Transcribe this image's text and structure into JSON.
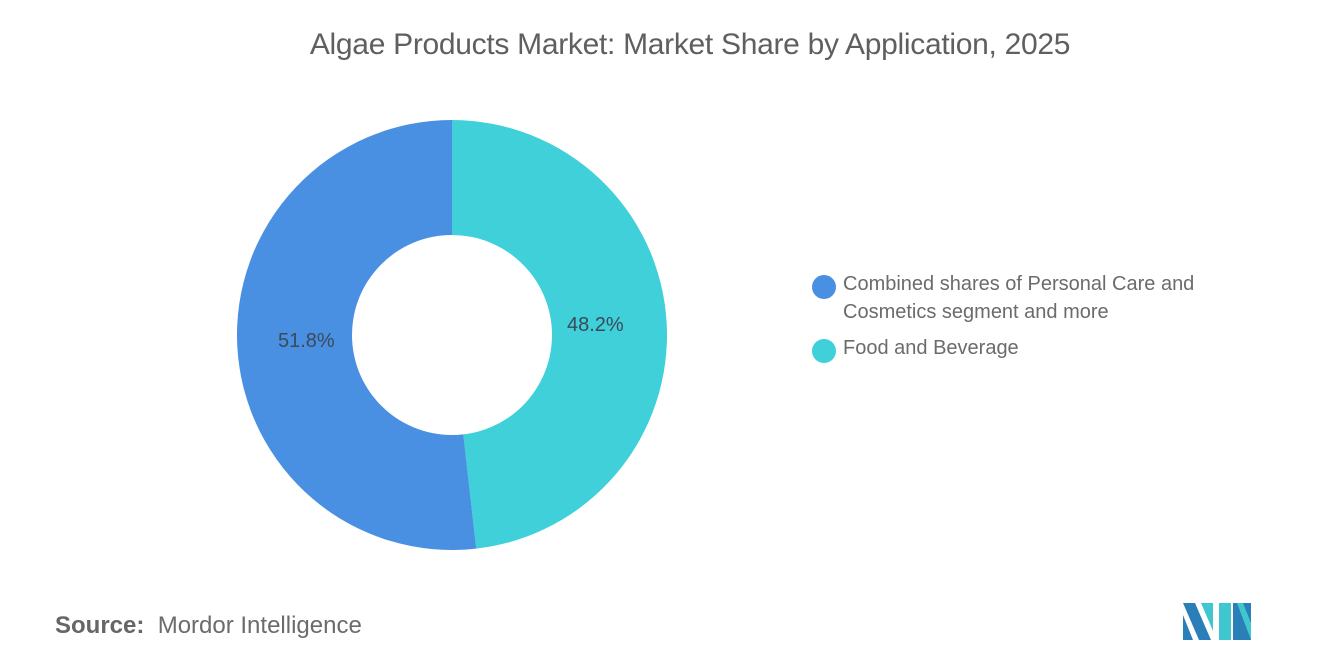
{
  "title": "Algae Products Market: Market Share by Application, 2025",
  "source": {
    "label": "Source:",
    "value": "Mordor Intelligence"
  },
  "legend": [
    {
      "label": "Combined shares of Personal Care and Cosmetics segment and more",
      "color": "#4a90e2"
    },
    {
      "label": "Food and Beverage",
      "color": "#3fd0d9"
    }
  ],
  "slice_labels": [
    "51.8%",
    "48.2%"
  ],
  "logo": {
    "icon": "mordor-intelligence-logo-icon"
  },
  "chart_data": {
    "type": "pie",
    "variant": "donut",
    "title": "Algae Products Market: Market Share by Application, 2025",
    "categories": [
      "Combined shares of Personal Care and Cosmetics segment and more",
      "Food and Beverage"
    ],
    "values": [
      51.8,
      48.2
    ],
    "unit": "%",
    "colors": [
      "#4a90e2",
      "#3fd0d9"
    ],
    "legend_position": "right",
    "data_labels": true,
    "source": "Mordor Intelligence"
  }
}
